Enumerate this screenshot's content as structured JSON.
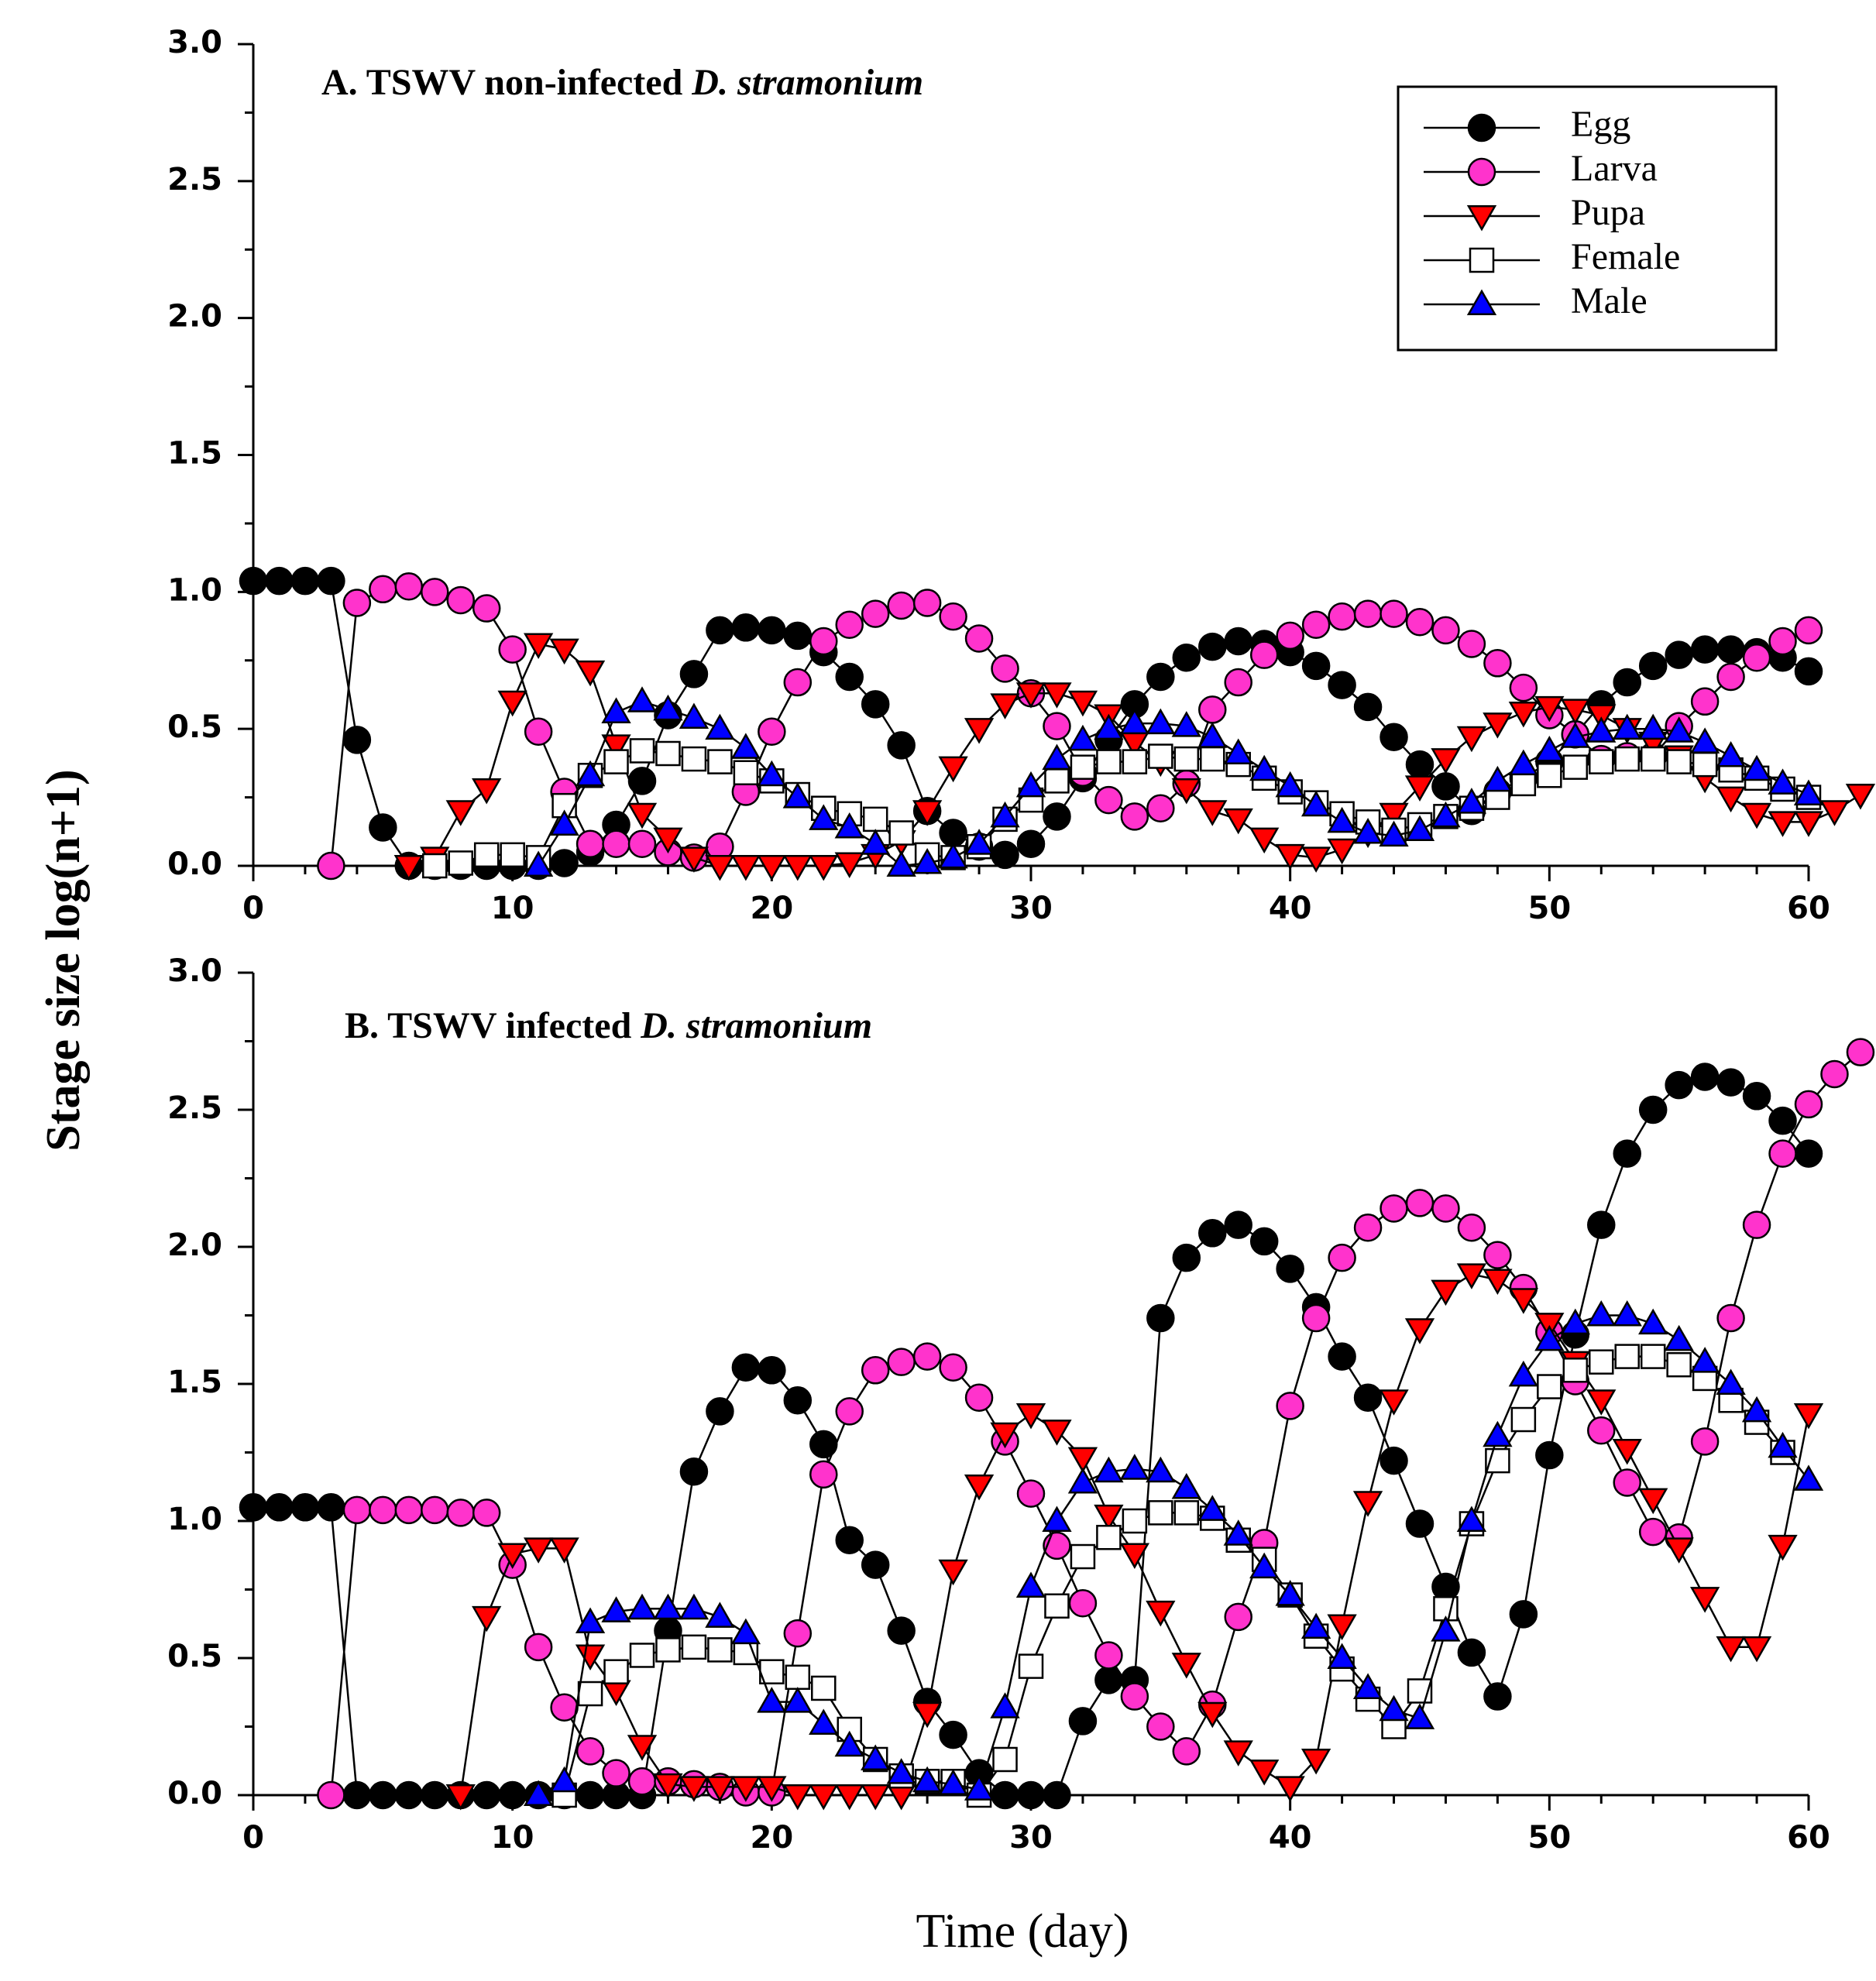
{
  "figure": {
    "ylabel": "Stage size log(n+1)",
    "xlabel": "Time (day)"
  },
  "legend": {
    "entries": [
      "Egg",
      "Larva",
      "Pupa",
      "Female",
      "Male"
    ]
  },
  "styles": {
    "Egg": {
      "shape": "circle",
      "fill": "#000000"
    },
    "Larva": {
      "shape": "circle",
      "fill": "#ff33cc"
    },
    "Pupa": {
      "shape": "triangle-down",
      "fill": "#ff0000"
    },
    "Female": {
      "shape": "square",
      "fill": "#ffffff"
    },
    "Male": {
      "shape": "triangle-up",
      "fill": "#0000ff"
    }
  },
  "chart_data": [
    {
      "type": "line",
      "panel": "A",
      "title_prefix": "A. TSWV non-infected ",
      "title_italic": "D. stramonium",
      "xlim": [
        0,
        60
      ],
      "ylim": [
        0,
        3.0
      ],
      "xticks": [
        "0",
        "10",
        "20",
        "30",
        "40",
        "50",
        "60"
      ],
      "yticks": [
        "0.0",
        "0.5",
        "1.0",
        "1.5",
        "2.0",
        "2.5",
        "3.0"
      ],
      "series": [
        {
          "name": "Egg",
          "start": 0,
          "values": [
            1.04,
            1.04,
            1.04,
            1.04,
            0.46,
            0.14,
            0.0,
            0.0,
            0.0,
            0.0,
            0.0,
            0.0,
            0.01,
            0.05,
            0.15,
            0.31,
            0.55,
            0.7,
            0.86,
            0.87,
            0.86,
            0.84,
            0.78,
            0.69,
            0.59,
            0.44,
            0.2,
            0.12,
            0.07,
            0.04,
            0.08,
            0.18,
            0.32,
            0.46,
            0.59,
            0.69,
            0.76,
            0.8,
            0.82,
            0.81,
            0.78,
            0.73,
            0.66,
            0.58,
            0.47,
            0.37,
            0.29,
            0.2,
            0.27,
            0.32,
            0.38,
            0.48,
            0.59,
            0.67,
            0.73,
            0.77,
            0.79,
            0.79,
            0.78,
            0.76,
            0.71
          ]
        },
        {
          "name": "Larva",
          "start": 3,
          "values": [
            0.0,
            0.96,
            1.01,
            1.02,
            1.0,
            0.97,
            0.94,
            0.79,
            0.49,
            0.27,
            0.08,
            0.08,
            0.08,
            0.05,
            0.03,
            0.07,
            0.27,
            0.49,
            0.67,
            0.82,
            0.88,
            0.92,
            0.95,
            0.96,
            0.91,
            0.83,
            0.72,
            0.63,
            0.51,
            0.34,
            0.24,
            0.18,
            0.21,
            0.3,
            0.57,
            0.67,
            0.77,
            0.84,
            0.88,
            0.91,
            0.92,
            0.92,
            0.89,
            0.86,
            0.81,
            0.74,
            0.65,
            0.55,
            0.48,
            0.39,
            0.4,
            0.4,
            0.51,
            0.6,
            0.69,
            0.76,
            0.82,
            0.86
          ]
        },
        {
          "name": "Pupa",
          "start": 6,
          "values": [
            0.0,
            0.03,
            0.2,
            0.28,
            0.6,
            0.81,
            0.79,
            0.71,
            0.44,
            0.19,
            0.1,
            0.03,
            0.0,
            0.0,
            0.0,
            0.0,
            0.0,
            0.01,
            0.04,
            0.09,
            0.2,
            0.36,
            0.5,
            0.59,
            0.63,
            0.63,
            0.6,
            0.55,
            0.45,
            0.38,
            0.28,
            0.2,
            0.17,
            0.1,
            0.04,
            0.03,
            0.06,
            0.12,
            0.19,
            0.29,
            0.39,
            0.47,
            0.52,
            0.56,
            0.58,
            0.57,
            0.55,
            0.5,
            0.45,
            0.4,
            0.32,
            0.25,
            0.19,
            0.16,
            0.16,
            0.2,
            0.26
          ]
        },
        {
          "name": "Female",
          "start": 7,
          "values": [
            0.0,
            0.01,
            0.04,
            0.04,
            0.03,
            0.22,
            0.33,
            0.38,
            0.42,
            0.41,
            0.39,
            0.38,
            0.34,
            0.31,
            0.26,
            0.21,
            0.19,
            0.17,
            0.12,
            0.04,
            0.03,
            0.07,
            0.17,
            0.24,
            0.31,
            0.36,
            0.38,
            0.38,
            0.4,
            0.39,
            0.39,
            0.37,
            0.32,
            0.27,
            0.23,
            0.19,
            0.16,
            0.13,
            0.15,
            0.18,
            0.21,
            0.25,
            0.3,
            0.33,
            0.36,
            0.38,
            0.39,
            0.39,
            0.38,
            0.37,
            0.35,
            0.32,
            0.28,
            0.25
          ]
        },
        {
          "name": "Male",
          "start": 11,
          "values": [
            0.0,
            0.15,
            0.33,
            0.56,
            0.6,
            0.57,
            0.54,
            0.5,
            0.43,
            0.33,
            0.25,
            0.17,
            0.14,
            0.08,
            0.0,
            0.01,
            0.03,
            0.08,
            0.18,
            0.29,
            0.39,
            0.46,
            0.5,
            0.52,
            0.52,
            0.51,
            0.47,
            0.41,
            0.35,
            0.29,
            0.22,
            0.16,
            0.12,
            0.11,
            0.13,
            0.18,
            0.23,
            0.31,
            0.37,
            0.42,
            0.47,
            0.49,
            0.5,
            0.5,
            0.49,
            0.45,
            0.4,
            0.35,
            0.3,
            0.26
          ]
        }
      ]
    },
    {
      "type": "line",
      "panel": "B",
      "title_prefix": "B. TSWV infected ",
      "title_italic": "D. stramonium",
      "xlim": [
        0,
        60
      ],
      "ylim": [
        0,
        3.0
      ],
      "xticks": [
        "0",
        "10",
        "20",
        "30",
        "40",
        "50",
        "60"
      ],
      "yticks": [
        "0.0",
        "0.5",
        "1.0",
        "1.5",
        "2.0",
        "2.5",
        "3.0"
      ],
      "series": [
        {
          "name": "Egg",
          "start": 0,
          "values": [
            1.05,
            1.05,
            1.05,
            1.05,
            0.0,
            0.0,
            0.0,
            0.0,
            0.0,
            0.0,
            0.0,
            0.0,
            0.0,
            0.0,
            0.0,
            0.0,
            0.6,
            1.18,
            1.4,
            1.56,
            1.55,
            1.44,
            1.28,
            0.93,
            0.84,
            0.6,
            0.34,
            0.22,
            0.08,
            0.0,
            0.0,
            0.0,
            0.27,
            0.42,
            0.42,
            1.74,
            1.96,
            2.05,
            2.08,
            2.02,
            1.92,
            1.78,
            1.6,
            1.45,
            1.22,
            0.99,
            0.76,
            0.52,
            0.36,
            0.66,
            1.24,
            1.68,
            2.08,
            2.34,
            2.5,
            2.59,
            2.62,
            2.6,
            2.55,
            2.46,
            2.34
          ]
        },
        {
          "name": "Larva",
          "start": 3,
          "values": [
            0.0,
            1.04,
            1.04,
            1.04,
            1.04,
            1.03,
            1.03,
            0.84,
            0.54,
            0.32,
            0.16,
            0.08,
            0.05,
            0.05,
            0.04,
            0.03,
            0.01,
            0.01,
            0.59,
            1.17,
            1.4,
            1.55,
            1.58,
            1.6,
            1.56,
            1.45,
            1.29,
            1.1,
            0.91,
            0.7,
            0.51,
            0.36,
            0.25,
            0.16,
            0.33,
            0.65,
            0.92,
            1.42,
            1.74,
            1.96,
            2.07,
            2.14,
            2.16,
            2.14,
            2.07,
            1.97,
            1.85,
            1.69,
            1.51,
            1.33,
            1.14,
            0.96,
            0.94,
            1.29,
            1.74,
            2.08,
            2.34,
            2.52,
            2.63,
            2.71
          ]
        },
        {
          "name": "Pupa",
          "start": 8,
          "values": [
            0.0,
            0.65,
            0.88,
            0.9,
            0.9,
            0.51,
            0.38,
            0.18,
            0.04,
            0.03,
            0.03,
            0.03,
            0.03,
            0.0,
            0.0,
            0.0,
            0.0,
            0.0,
            0.3,
            0.82,
            1.13,
            1.32,
            1.39,
            1.33,
            1.23,
            1.02,
            0.88,
            0.67,
            0.48,
            0.3,
            0.16,
            0.09,
            0.03,
            0.13,
            0.62,
            1.07,
            1.44,
            1.7,
            1.84,
            1.9,
            1.88,
            1.81,
            1.72,
            1.58,
            1.44,
            1.26,
            1.08,
            0.9,
            0.72,
            0.54,
            0.54,
            0.91,
            1.39
          ]
        },
        {
          "name": "Female",
          "start": 12,
          "values": [
            0.0,
            0.37,
            0.45,
            0.51,
            0.53,
            0.54,
            0.53,
            0.52,
            0.45,
            0.43,
            0.39,
            0.24,
            0.13,
            0.07,
            0.05,
            0.05,
            0.0,
            0.13,
            0.47,
            0.69,
            0.87,
            0.94,
            1.0,
            1.03,
            1.03,
            1.01,
            0.93,
            0.86,
            0.73,
            0.58,
            0.46,
            0.35,
            0.25,
            0.38,
            0.68,
            0.99,
            1.22,
            1.37,
            1.49,
            1.55,
            1.58,
            1.6,
            1.6,
            1.57,
            1.52,
            1.44,
            1.36,
            1.25
          ]
        },
        {
          "name": "Male",
          "start": 11,
          "values": [
            0.0,
            0.05,
            0.63,
            0.67,
            0.68,
            0.68,
            0.68,
            0.65,
            0.59,
            0.34,
            0.34,
            0.26,
            0.18,
            0.13,
            0.08,
            0.05,
            0.04,
            0.02,
            0.32,
            0.76,
            1.0,
            1.14,
            1.18,
            1.19,
            1.18,
            1.12,
            1.04,
            0.95,
            0.83,
            0.73,
            0.61,
            0.5,
            0.39,
            0.31,
            0.28,
            0.6,
            1.0,
            1.31,
            1.53,
            1.66,
            1.72,
            1.75,
            1.75,
            1.72,
            1.66,
            1.58,
            1.5,
            1.4,
            1.27,
            1.15
          ]
        }
      ]
    }
  ]
}
